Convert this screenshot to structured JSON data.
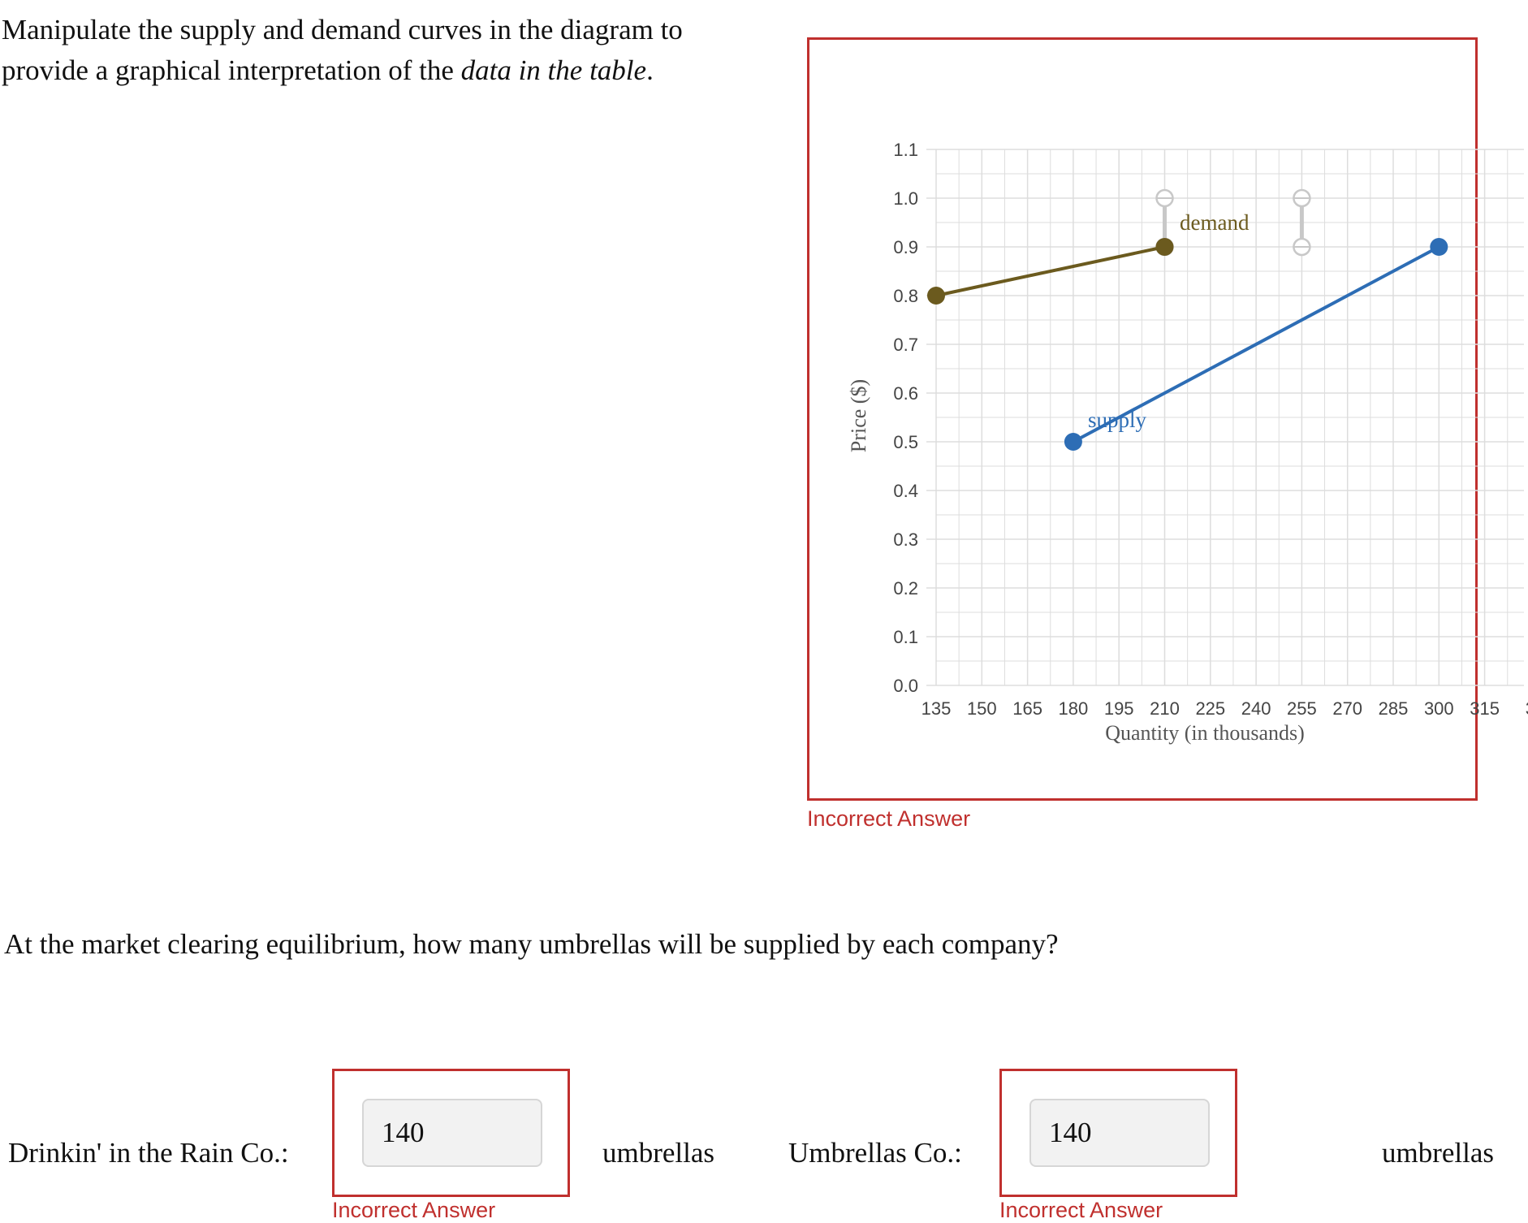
{
  "prompt": {
    "text_before": "Manipulate the supply and demand curves in the diagram to provide a graphical interpretation of the ",
    "emphasis": "data in the table",
    "text_after": "."
  },
  "graph_feedback": "Incorrect Answer",
  "question": "At the market clearing equilibrium, how many umbrellas will be supplied by each company?",
  "answers": [
    {
      "company": "Drinkin' in the Rain Co.:",
      "value": "140",
      "unit": "umbrellas",
      "feedback": "Incorrect Answer"
    },
    {
      "company": "Umbrellas Co.:",
      "value": "140",
      "unit": "umbrellas",
      "feedback": "Incorrect Answer"
    }
  ],
  "colors": {
    "error": "#c0302e",
    "demand": "#6b5a1e",
    "supply": "#2d6db5",
    "handle": "#c8c8c8",
    "grid": "#dddddd"
  },
  "chart_data": {
    "type": "line",
    "xlabel": "Quantity (in thousands)",
    "ylabel": "Price ($)",
    "x_ticks": [
      "135",
      "150",
      "165",
      "180",
      "195",
      "210",
      "225",
      "240",
      "255",
      "270",
      "285",
      "300",
      "315",
      "3"
    ],
    "y_ticks": [
      "0.0",
      "0.1",
      "0.2",
      "0.3",
      "0.4",
      "0.5",
      "0.6",
      "0.7",
      "0.8",
      "0.9",
      "1.0",
      "1.1"
    ],
    "xlim": [
      135,
      330
    ],
    "ylim": [
      0,
      1.1
    ],
    "grid": true,
    "series": [
      {
        "name": "demand",
        "points": [
          [
            135,
            0.8
          ],
          [
            210,
            0.9
          ]
        ]
      },
      {
        "name": "supply",
        "points": [
          [
            180,
            0.5
          ],
          [
            300,
            0.9
          ]
        ]
      }
    ],
    "handles": [
      {
        "x": 210,
        "from": 0.9,
        "to": 1.0
      },
      {
        "x": 255,
        "from": 0.9,
        "to": 1.0
      }
    ]
  }
}
